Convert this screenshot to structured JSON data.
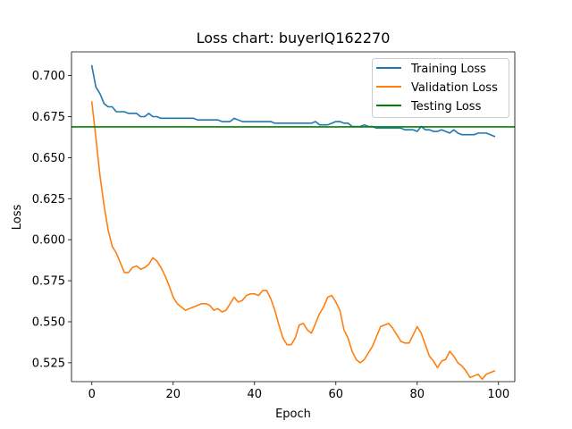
{
  "chart_data": {
    "type": "line",
    "title": "Loss chart: buyerIQ162270",
    "xlabel": "Epoch",
    "ylabel": "Loss",
    "xlim": [
      -5,
      104
    ],
    "ylim": [
      0.5135,
      0.7145
    ],
    "xticks": [
      0,
      20,
      40,
      60,
      80,
      100
    ],
    "yticks": [
      0.525,
      0.55,
      0.575,
      0.6,
      0.625,
      0.65,
      0.675,
      0.7
    ],
    "ytick_labels": [
      "0.525",
      "0.550",
      "0.575",
      "0.600",
      "0.625",
      "0.650",
      "0.675",
      "0.700"
    ],
    "grid": false,
    "legend_position": "upper right",
    "series": [
      {
        "name": "Training Loss",
        "color": "#1f77b4",
        "x": [
          0,
          1,
          2,
          3,
          4,
          5,
          6,
          7,
          8,
          9,
          10,
          11,
          12,
          13,
          14,
          15,
          16,
          17,
          18,
          19,
          20,
          21,
          22,
          23,
          24,
          25,
          26,
          27,
          28,
          29,
          30,
          31,
          32,
          33,
          34,
          35,
          36,
          37,
          38,
          39,
          40,
          41,
          42,
          43,
          44,
          45,
          46,
          47,
          48,
          49,
          50,
          51,
          52,
          53,
          54,
          55,
          56,
          57,
          58,
          59,
          60,
          61,
          62,
          63,
          64,
          65,
          66,
          67,
          68,
          69,
          70,
          71,
          72,
          73,
          74,
          75,
          76,
          77,
          78,
          79,
          80,
          81,
          82,
          83,
          84,
          85,
          86,
          87,
          88,
          89,
          90,
          91,
          92,
          93,
          94,
          95,
          96,
          97,
          98,
          99
        ],
        "values": [
          0.706,
          0.693,
          0.689,
          0.683,
          0.681,
          0.681,
          0.678,
          0.678,
          0.678,
          0.677,
          0.677,
          0.677,
          0.675,
          0.675,
          0.677,
          0.675,
          0.675,
          0.674,
          0.674,
          0.674,
          0.674,
          0.674,
          0.674,
          0.674,
          0.674,
          0.674,
          0.673,
          0.673,
          0.673,
          0.673,
          0.673,
          0.673,
          0.672,
          0.672,
          0.672,
          0.674,
          0.673,
          0.672,
          0.672,
          0.672,
          0.672,
          0.672,
          0.672,
          0.672,
          0.672,
          0.671,
          0.671,
          0.671,
          0.671,
          0.671,
          0.671,
          0.671,
          0.671,
          0.671,
          0.671,
          0.672,
          0.67,
          0.67,
          0.67,
          0.671,
          0.672,
          0.672,
          0.671,
          0.671,
          0.669,
          0.669,
          0.669,
          0.67,
          0.669,
          0.669,
          0.668,
          0.668,
          0.668,
          0.668,
          0.668,
          0.668,
          0.668,
          0.667,
          0.667,
          0.667,
          0.666,
          0.669,
          0.667,
          0.667,
          0.666,
          0.666,
          0.667,
          0.666,
          0.665,
          0.667,
          0.665,
          0.664,
          0.664,
          0.664,
          0.664,
          0.665,
          0.665,
          0.665,
          0.664,
          0.663
        ]
      },
      {
        "name": "Validation Loss",
        "color": "#ff7f0e",
        "x": [
          0,
          1,
          2,
          3,
          4,
          5,
          6,
          7,
          8,
          9,
          10,
          11,
          12,
          13,
          14,
          15,
          16,
          17,
          18,
          19,
          20,
          21,
          22,
          23,
          24,
          25,
          26,
          27,
          28,
          29,
          30,
          31,
          32,
          33,
          34,
          35,
          36,
          37,
          38,
          39,
          40,
          41,
          42,
          43,
          44,
          45,
          46,
          47,
          48,
          49,
          50,
          51,
          52,
          53,
          54,
          55,
          56,
          57,
          58,
          59,
          60,
          61,
          62,
          63,
          64,
          65,
          66,
          67,
          68,
          69,
          70,
          71,
          72,
          73,
          74,
          75,
          76,
          77,
          78,
          79,
          80,
          81,
          82,
          83,
          84,
          85,
          86,
          87,
          88,
          89,
          90,
          91,
          92,
          93,
          94,
          95,
          96,
          97,
          98,
          99
        ],
        "values": [
          0.684,
          0.662,
          0.639,
          0.621,
          0.606,
          0.596,
          0.592,
          0.586,
          0.58,
          0.58,
          0.583,
          0.584,
          0.582,
          0.583,
          0.585,
          0.589,
          0.587,
          0.583,
          0.578,
          0.572,
          0.565,
          0.561,
          0.559,
          0.557,
          0.558,
          0.559,
          0.56,
          0.561,
          0.561,
          0.56,
          0.557,
          0.558,
          0.556,
          0.557,
          0.561,
          0.565,
          0.562,
          0.563,
          0.566,
          0.567,
          0.567,
          0.566,
          0.569,
          0.569,
          0.564,
          0.557,
          0.548,
          0.54,
          0.536,
          0.536,
          0.54,
          0.548,
          0.549,
          0.545,
          0.543,
          0.549,
          0.555,
          0.559,
          0.565,
          0.566,
          0.562,
          0.557,
          0.545,
          0.54,
          0.532,
          0.527,
          0.525,
          0.527,
          0.531,
          0.535,
          0.541,
          0.547,
          0.548,
          0.549,
          0.546,
          0.542,
          0.538,
          0.537,
          0.537,
          0.542,
          0.547,
          0.543,
          0.536,
          0.529,
          0.526,
          0.522,
          0.526,
          0.527,
          0.532,
          0.529,
          0.525,
          0.523,
          0.52,
          0.516,
          0.517,
          0.518,
          0.515,
          0.518,
          0.519,
          0.52
        ]
      },
      {
        "name": "Testing Loss",
        "color": "#008000",
        "type": "hline",
        "value": 0.6688
      }
    ]
  }
}
